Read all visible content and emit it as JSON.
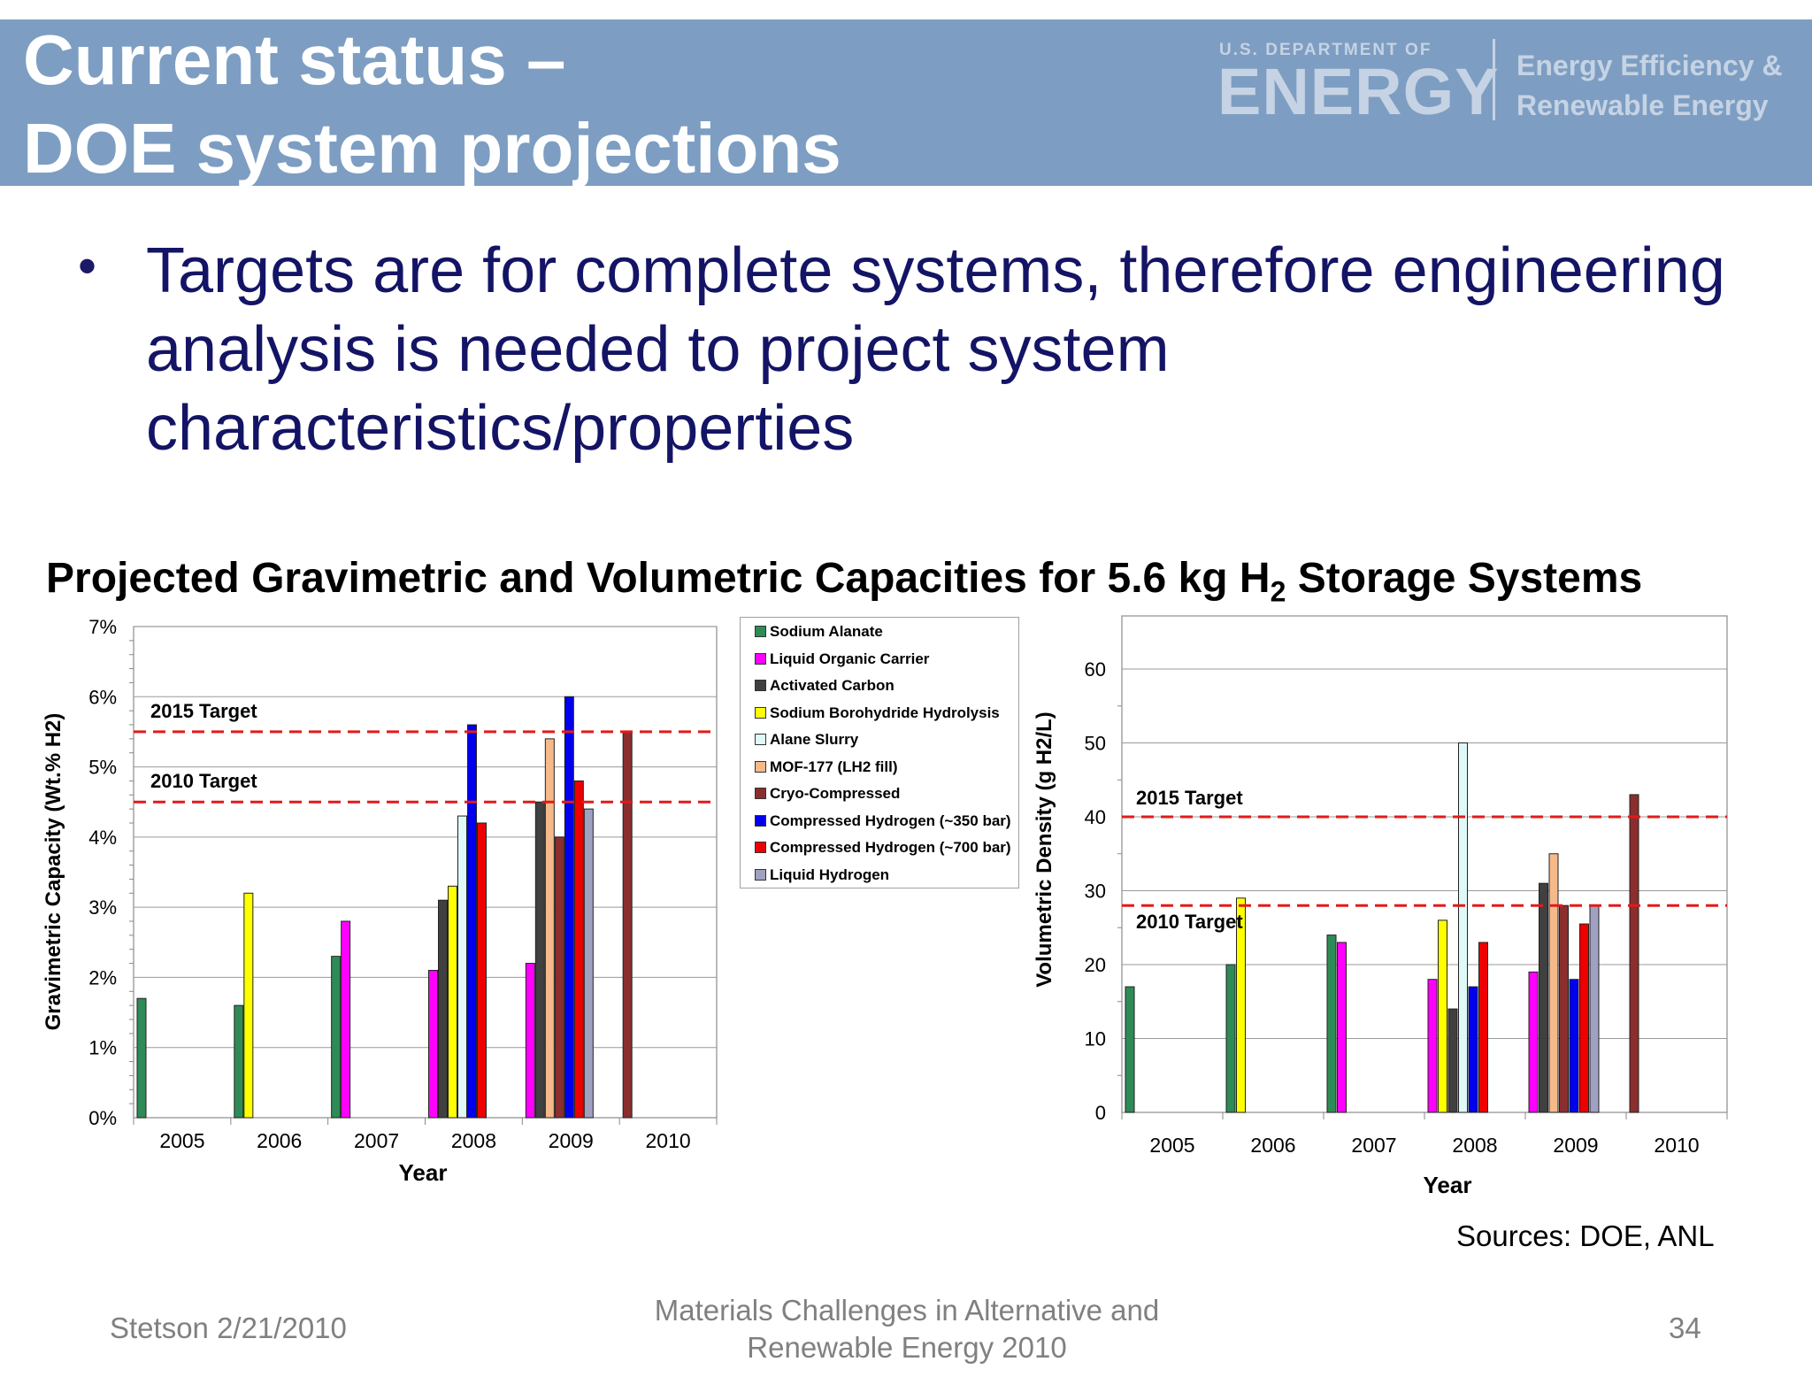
{
  "header": {
    "title_line1": "Current status –",
    "title_line2": "DOE system projections",
    "logo_small": "U.S. DEPARTMENT OF",
    "logo_big": "ENERGY",
    "logo_right_1": "Energy Efficiency &",
    "logo_right_2": "Renewable Energy",
    "band_color": "#7d9ec2"
  },
  "bullet": {
    "symbol": "•",
    "text": "Targets are for complete systems, therefore engineering analysis is needed to project system characteristics/properties"
  },
  "section_title": {
    "before_sub": "Projected Gravimetric and Volumetric Capacities for 5.6 kg H",
    "sub": "2",
    "after_sub": " Storage Systems"
  },
  "legend": [
    {
      "label": "Sodium Alanate",
      "color": "#2e8b57"
    },
    {
      "label": "Liquid Organic Carrier",
      "color": "#ff00ff"
    },
    {
      "label": "Activated Carbon",
      "color": "#404040"
    },
    {
      "label": "Sodium Borohydride Hydrolysis",
      "color": "#ffff00"
    },
    {
      "label": "Alane Slurry",
      "color": "#dff8f8"
    },
    {
      "label": "MOF-177 (LH2 fill)",
      "color": "#f5b98a"
    },
    {
      "label": "Cryo-Compressed",
      "color": "#8b2e2e"
    },
    {
      "label": "Compressed Hydrogen (~350 bar)",
      "color": "#0000ee"
    },
    {
      "label": "Compressed Hydrogen (~700 bar)",
      "color": "#ee0000"
    },
    {
      "label": "Liquid Hydrogen",
      "color": "#a0a0c0"
    }
  ],
  "chart_data": [
    {
      "type": "bar",
      "categories": [
        "2005",
        "2006",
        "2007",
        "2008",
        "2009",
        "2010"
      ],
      "xlabel": "Year",
      "ylabel": "Gravimetric Capacity (Wt.% H2)",
      "ylim": [
        0,
        7
      ],
      "yticks": [
        "0%",
        "1%",
        "2%",
        "3%",
        "4%",
        "5%",
        "6%",
        "7%"
      ],
      "grid": "horizontal",
      "targets": [
        {
          "label": "2015 Target",
          "value": 5.5
        },
        {
          "label": "2010 Target",
          "value": 4.5
        }
      ],
      "bars": [
        {
          "year": "2005",
          "series": "Sodium Alanate",
          "value": 1.7
        },
        {
          "year": "2006",
          "series": "Sodium Alanate",
          "value": 1.6
        },
        {
          "year": "2006",
          "series": "Sodium Borohydride Hydrolysis",
          "value": 3.2
        },
        {
          "year": "2007",
          "series": "Sodium Alanate",
          "value": 2.3
        },
        {
          "year": "2007",
          "series": "Liquid Organic Carrier",
          "value": 2.8
        },
        {
          "year": "2008",
          "series": "Liquid Organic Carrier",
          "value": 2.1
        },
        {
          "year": "2008",
          "series": "Activated Carbon",
          "value": 3.1
        },
        {
          "year": "2008",
          "series": "Sodium Borohydride Hydrolysis",
          "value": 3.3
        },
        {
          "year": "2008",
          "series": "Alane Slurry",
          "value": 4.3
        },
        {
          "year": "2008",
          "series": "Compressed Hydrogen (~350 bar)",
          "value": 5.6
        },
        {
          "year": "2008",
          "series": "Compressed Hydrogen (~700 bar)",
          "value": 4.2
        },
        {
          "year": "2009",
          "series": "Liquid Organic Carrier",
          "value": 2.2
        },
        {
          "year": "2009",
          "series": "Activated Carbon",
          "value": 4.5
        },
        {
          "year": "2009",
          "series": "MOF-177 (LH2 fill)",
          "value": 5.4
        },
        {
          "year": "2009",
          "series": "Cryo-Compressed",
          "value": 4.0
        },
        {
          "year": "2009",
          "series": "Compressed Hydrogen (~350 bar)",
          "value": 6.0
        },
        {
          "year": "2009",
          "series": "Compressed Hydrogen (~700 bar)",
          "value": 4.8
        },
        {
          "year": "2009",
          "series": "Liquid Hydrogen",
          "value": 4.4
        },
        {
          "year": "2010",
          "series": "Cryo-Compressed",
          "value": 5.5
        }
      ]
    },
    {
      "type": "bar",
      "categories": [
        "2005",
        "2006",
        "2007",
        "2008",
        "2009",
        "2010"
      ],
      "xlabel": "Year",
      "ylabel": "Volumetric Density (g H2/L)",
      "ylim": [
        0,
        60
      ],
      "yticks": [
        "0",
        "10",
        "20",
        "30",
        "40",
        "50",
        "60"
      ],
      "grid": "horizontal",
      "targets": [
        {
          "label": "2015 Target",
          "value": 40
        },
        {
          "label": "2010 Target",
          "value": 28
        }
      ],
      "bars": [
        {
          "year": "2005",
          "series": "Sodium Alanate",
          "value": 17
        },
        {
          "year": "2006",
          "series": "Sodium Alanate",
          "value": 20
        },
        {
          "year": "2006",
          "series": "Sodium Borohydride Hydrolysis",
          "value": 29
        },
        {
          "year": "2007",
          "series": "Sodium Alanate",
          "value": 24
        },
        {
          "year": "2007",
          "series": "Liquid Organic Carrier",
          "value": 23
        },
        {
          "year": "2008",
          "series": "Liquid Organic Carrier",
          "value": 18
        },
        {
          "year": "2008",
          "series": "Sodium Borohydride Hydrolysis",
          "value": 26
        },
        {
          "year": "2008",
          "series": "Activated Carbon",
          "value": 14
        },
        {
          "year": "2008",
          "series": "Alane Slurry",
          "value": 50
        },
        {
          "year": "2008",
          "series": "Compressed Hydrogen (~350 bar)",
          "value": 17
        },
        {
          "year": "2008",
          "series": "Compressed Hydrogen (~700 bar)",
          "value": 23
        },
        {
          "year": "2009",
          "series": "Liquid Organic Carrier",
          "value": 19
        },
        {
          "year": "2009",
          "series": "Activated Carbon",
          "value": 31
        },
        {
          "year": "2009",
          "series": "MOF-177 (LH2 fill)",
          "value": 35
        },
        {
          "year": "2009",
          "series": "Cryo-Compressed",
          "value": 28
        },
        {
          "year": "2009",
          "series": "Compressed Hydrogen (~350 bar)",
          "value": 18
        },
        {
          "year": "2009",
          "series": "Compressed Hydrogen (~700 bar)",
          "value": 25.5
        },
        {
          "year": "2009",
          "series": "Liquid Hydrogen",
          "value": 28
        },
        {
          "year": "2010",
          "series": "Cryo-Compressed",
          "value": 43
        }
      ]
    }
  ],
  "sources": "Sources: DOE, ANL",
  "footer": {
    "left": "Stetson 2/21/2010",
    "center_line1": "Materials Challenges in Alternative and",
    "center_line2": "Renewable Energy 2010",
    "page": "34"
  }
}
